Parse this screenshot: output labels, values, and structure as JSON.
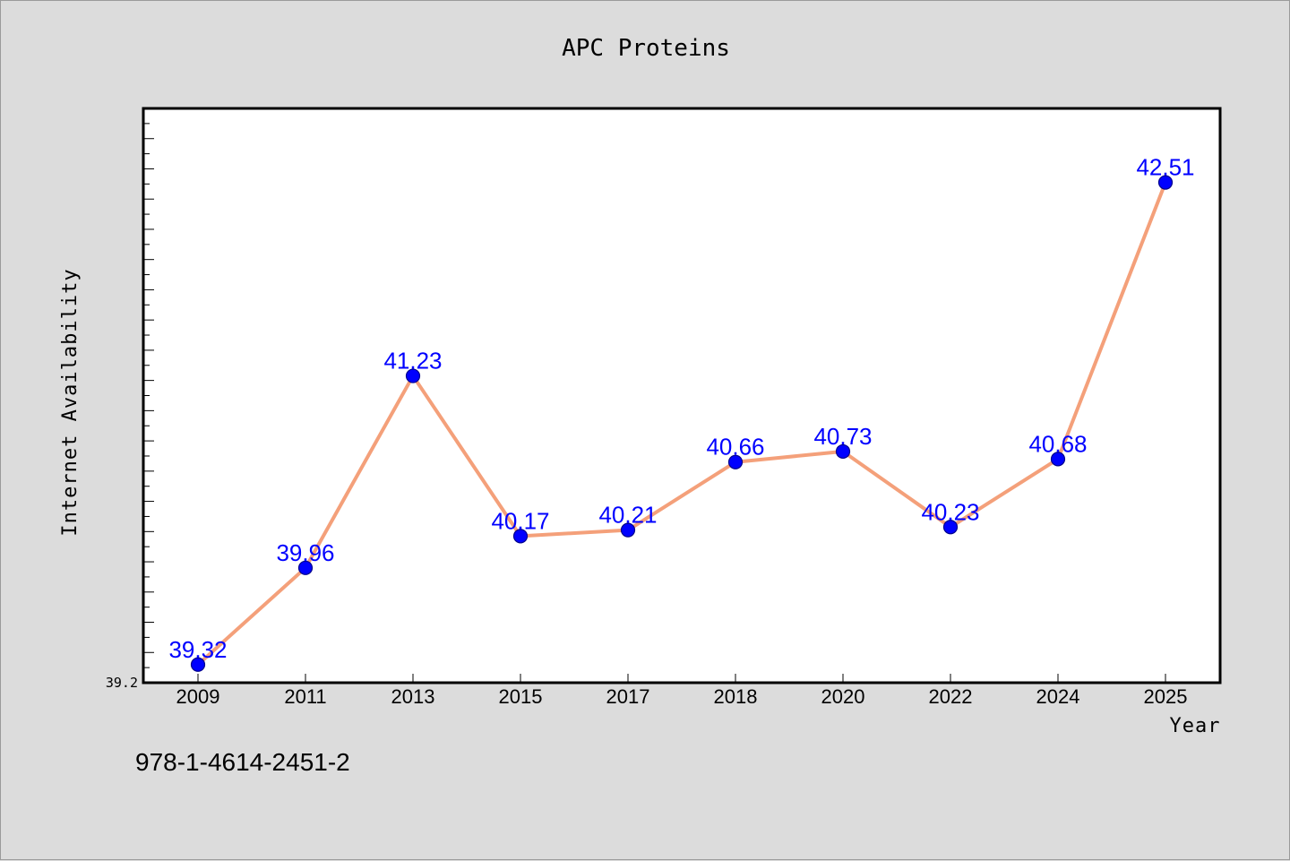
{
  "chart_data": {
    "type": "line",
    "title": "APC Proteins",
    "xlabel": "Year",
    "ylabel": "Internet Availability",
    "categories": [
      "2009",
      "2011",
      "2013",
      "2015",
      "2017",
      "2018",
      "2020",
      "2022",
      "2024",
      "2025"
    ],
    "series": [
      {
        "values": [
          39.32,
          39.96,
          41.23,
          40.17,
          40.21,
          40.66,
          40.73,
          40.23,
          40.68,
          42.51
        ],
        "labels": [
          "39.32",
          "39.96",
          "41.23",
          "40.17",
          "40.21",
          "40.66",
          "40.73",
          "40.23",
          "40.68",
          "42.51"
        ]
      }
    ],
    "ylim": [
      39.2,
      43.0
    ],
    "yticks_labeled": [
      "39.2"
    ],
    "grid": false,
    "legend": "none",
    "colors": {
      "line": "#f4a07a",
      "marker": "#0000ff",
      "marker_edge": "#00008b",
      "data_label": "#0000ff",
      "plot_bg": "#ffffff",
      "page_bg": "#dcdcdc"
    }
  },
  "footer": {
    "isbn": "978-1-4614-2451-2"
  }
}
